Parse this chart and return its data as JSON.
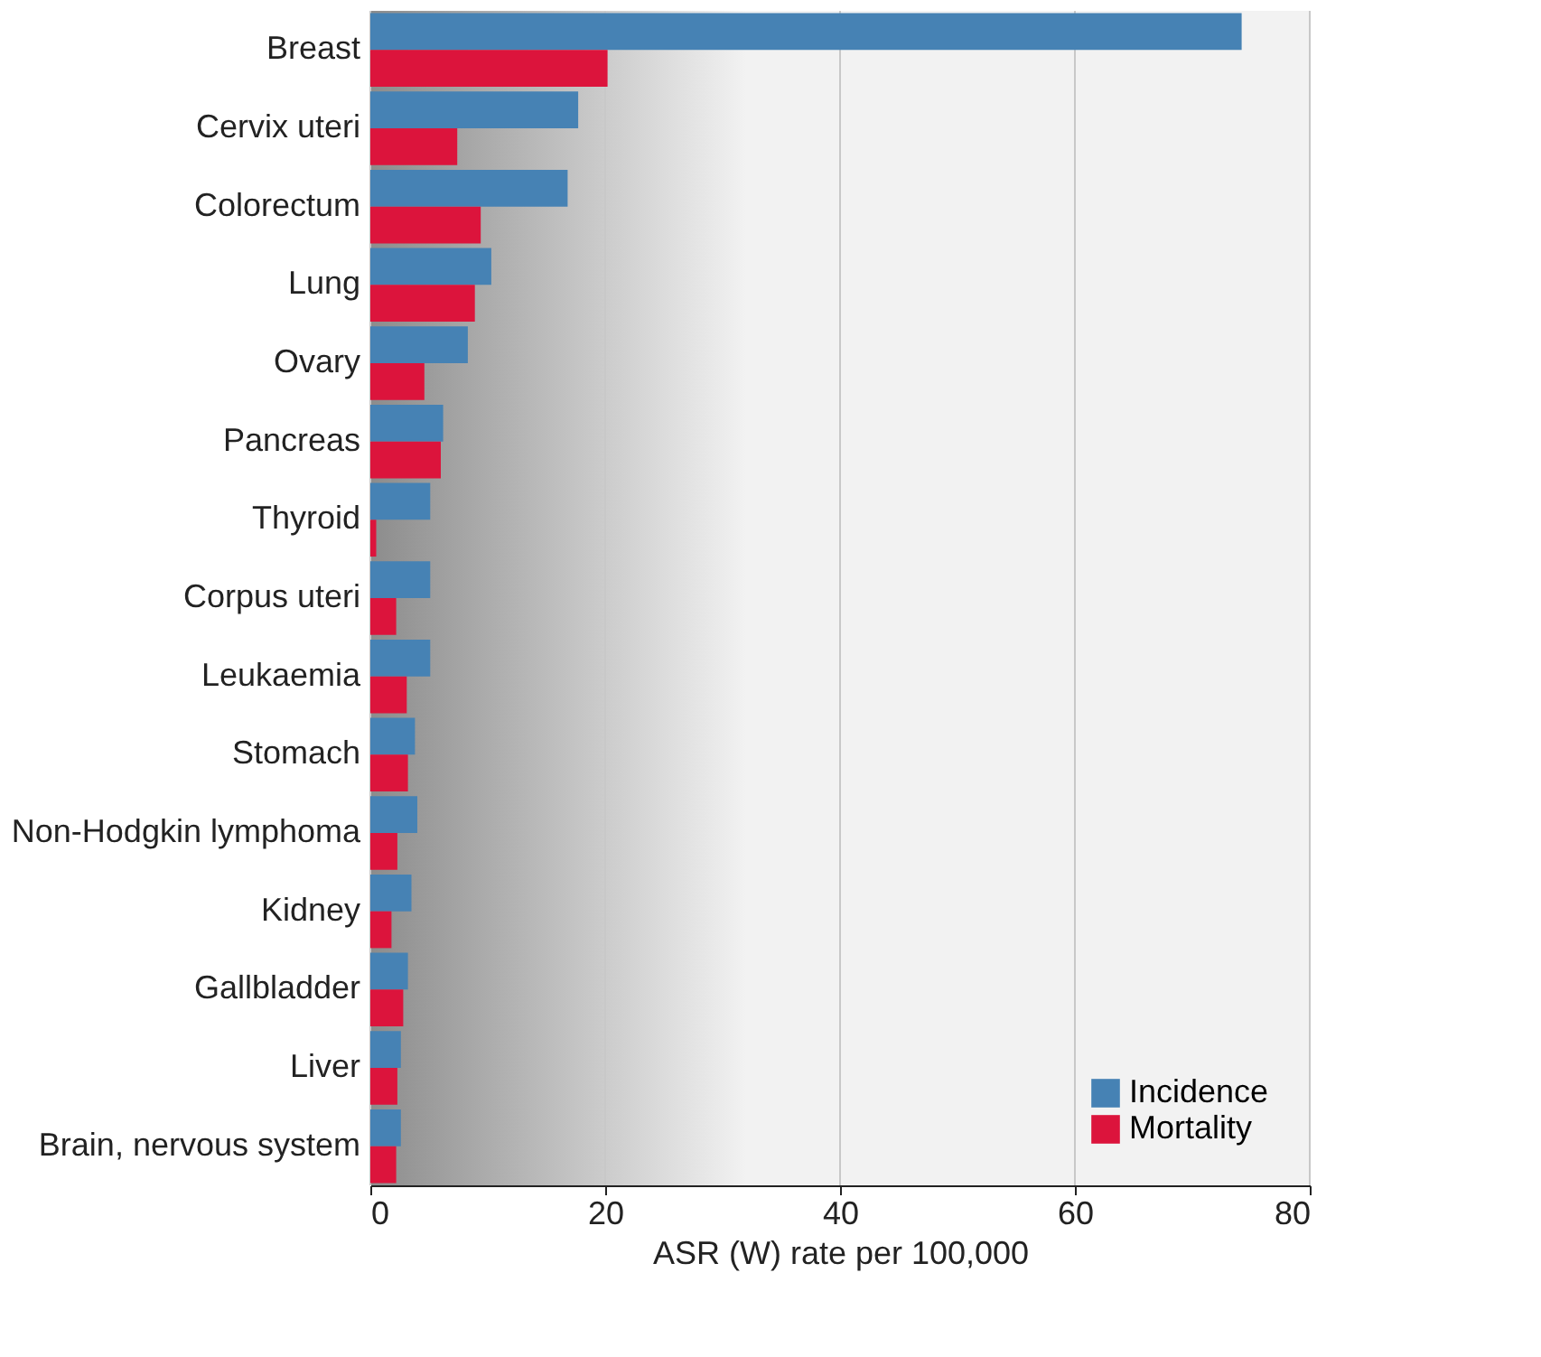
{
  "chart_data": {
    "type": "bar",
    "orientation": "horizontal",
    "xlabel": "ASR (W) rate per 100,000",
    "categories": [
      "Breast",
      "Cervix uteri",
      "Colorectum",
      "Lung",
      "Ovary",
      "Pancreas",
      "Thyroid",
      "Corpus uteri",
      "Leukaemia",
      "Stomach",
      "Non-Hodgkin lymphoma",
      "Kidney",
      "Gallbladder",
      "Liver",
      "Brain, nervous system"
    ],
    "series": [
      {
        "name": "Incidence",
        "color": "#4682b4",
        "values": [
          74.2,
          17.7,
          16.8,
          10.3,
          8.3,
          6.2,
          5.1,
          5.1,
          5.1,
          3.8,
          4.0,
          3.5,
          3.2,
          2.6,
          2.6
        ]
      },
      {
        "name": "Mortality",
        "color": "#dc143c",
        "values": [
          20.2,
          7.4,
          9.4,
          8.9,
          4.6,
          6.0,
          0.5,
          2.2,
          3.1,
          3.2,
          2.3,
          1.8,
          2.8,
          2.3,
          2.2
        ]
      }
    ],
    "xlim": [
      0,
      80
    ],
    "xticks": [
      0,
      20,
      40,
      60,
      80
    ],
    "grid": "x",
    "legend": "bottom right"
  }
}
